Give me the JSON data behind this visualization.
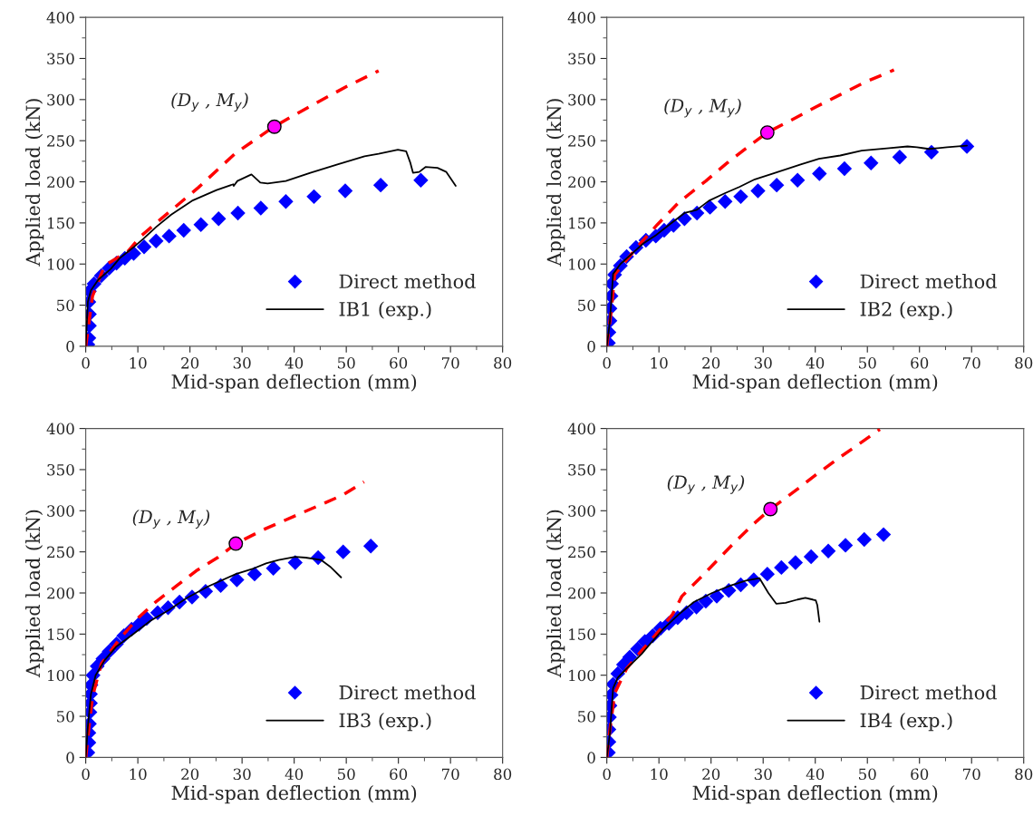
{
  "chart_data": [
    {
      "type": "line",
      "xlabel": "Mid-span deflection (mm)",
      "ylabel": "Applied load (kN)",
      "xlim": [
        0,
        80
      ],
      "ylim": [
        0,
        400
      ],
      "xticks": [
        0,
        10,
        20,
        30,
        40,
        50,
        60,
        70,
        80
      ],
      "yticks": [
        0,
        50,
        100,
        150,
        200,
        250,
        300,
        350,
        400
      ],
      "legend": "bottom right",
      "grid": false,
      "annotations": [
        {
          "text": "(D$_{y}$ , M$_{y}$)",
          "x": 36.2,
          "y": 267
        }
      ],
      "series": [
        {
          "name": "Direct method",
          "type": "scatter",
          "marker": "diamond",
          "color": "#0000ff",
          "x": [
            0.4,
            0.6,
            0.7,
            0.7,
            0.6,
            0.7,
            1.6,
            3.0,
            4.5,
            5.9,
            7.5,
            9.2,
            11.2,
            13.5,
            16.0,
            18.8,
            22.1,
            25.5,
            29.2,
            33.6,
            38.4,
            43.8,
            49.8,
            56.6,
            64.3
          ],
          "values": [
            2,
            10,
            25,
            39,
            54,
            67,
            76,
            86,
            95,
            101,
            107,
            113,
            121,
            128,
            134,
            141,
            148,
            155,
            162,
            168,
            176,
            182,
            189,
            196,
            202
          ]
        },
        {
          "line_style": "dashed",
          "color": "#ff0000",
          "x": [
            0,
            1.3,
            3.6,
            8.2,
            10.6,
            14.1,
            21.6,
            28.6,
            36.1,
            43.1,
            50.1,
            56.2
          ],
          "values": [
            0,
            61,
            98,
            116,
            134,
            153,
            193,
            234,
            267,
            292,
            316,
            335
          ]
        },
        {
          "name": "IB1 (exp.)",
          "line_style": "solid",
          "color": "#000000",
          "x": [
            0,
            0.4,
            1.0,
            2.4,
            4.8,
            6.5,
            9.1,
            11.1,
            13.5,
            16.4,
            20.4,
            25.1,
            28.3,
            28.4,
            29.1,
            31.8,
            33.5,
            34.9,
            38.4,
            43.1,
            48.3,
            53.5,
            56.2,
            59.9,
            61.5,
            62.3,
            62.8,
            64.0,
            65.2,
            67.5,
            69.2,
            71.0
          ],
          "values": [
            0,
            54,
            68,
            81,
            94,
            107,
            120,
            131,
            145,
            160,
            177,
            190,
            197,
            195,
            201,
            209,
            199,
            198,
            201,
            211,
            221,
            231,
            234,
            239,
            237,
            223,
            211,
            212,
            218,
            217,
            212,
            195
          ]
        },
        {
          "type": "scatter",
          "marker": "circle",
          "color": "#ff00ff",
          "x": [
            36.2
          ],
          "values": [
            267
          ]
        }
      ]
    },
    {
      "type": "line",
      "xlabel": "Mid-span deflection (mm)",
      "ylabel": "Applied load (kN)",
      "xlim": [
        0,
        80
      ],
      "ylim": [
        0,
        400
      ],
      "xticks": [
        0,
        10,
        20,
        30,
        40,
        50,
        60,
        70,
        80
      ],
      "yticks": [
        0,
        50,
        100,
        150,
        200,
        250,
        300,
        350,
        400
      ],
      "legend": "bottom right",
      "grid": false,
      "annotations": [
        {
          "text": "(D$_{y}$ , M$_{y}$)",
          "x": 30.8,
          "y": 260
        }
      ],
      "series": [
        {
          "name": "Direct method",
          "type": "scatter",
          "marker": "diamond",
          "color": "#0000ff",
          "x": [
            0.3,
            0.4,
            0.6,
            0.6,
            0.8,
            0.9,
            1.5,
            2.6,
            3.8,
            5.6,
            7.5,
            9.4,
            11.0,
            12.8,
            14.9,
            17.3,
            19.8,
            22.7,
            25.7,
            29.0,
            32.6,
            36.6,
            40.8,
            45.6,
            50.7,
            56.2,
            62.3,
            69.1
          ],
          "values": [
            4,
            17,
            31,
            46,
            61,
            76,
            87,
            98,
            109,
            120,
            129,
            134,
            141,
            147,
            155,
            162,
            169,
            176,
            182,
            189,
            196,
            202,
            210,
            216,
            223,
            230,
            236,
            243
          ]
        },
        {
          "line_style": "dashed",
          "color": "#ff0000",
          "x": [
            0,
            0.9,
            1.5,
            3.8,
            6.7,
            9.7,
            13.8,
            19.0,
            23.1,
            27.2,
            30.8,
            35.4,
            40.1,
            44.8,
            49.5,
            55.1
          ],
          "values": [
            0,
            46,
            87,
            105,
            127,
            148,
            175,
            201,
            223,
            243,
            260,
            275,
            291,
            306,
            321,
            336
          ]
        },
        {
          "name": "IB2 (exp.)",
          "line_style": "solid",
          "color": "#000000",
          "x": [
            0,
            0.6,
            1.2,
            2.6,
            4.7,
            7.0,
            9.4,
            12.0,
            14.9,
            17.3,
            19.6,
            22.6,
            25.5,
            28.4,
            31.9,
            37.2,
            40.7,
            44.8,
            48.9,
            54.2,
            57.7,
            59.5,
            61.8,
            63.6,
            65.3,
            69.1
          ],
          "values": [
            0,
            31,
            88,
            100,
            112,
            125,
            135,
            148,
            162,
            166,
            177,
            186,
            194,
            203,
            210,
            221,
            228,
            232,
            238,
            241,
            243,
            242,
            240,
            241,
            242,
            244
          ]
        },
        {
          "type": "scatter",
          "marker": "circle",
          "color": "#ff00ff",
          "x": [
            30.8
          ],
          "values": [
            260
          ]
        }
      ]
    },
    {
      "type": "line",
      "xlabel": "Mid-span deflection (mm)",
      "ylabel": "Applied load (kN)",
      "xlim": [
        0,
        80
      ],
      "ylim": [
        0,
        400
      ],
      "xticks": [
        0,
        10,
        20,
        30,
        40,
        50,
        60,
        70,
        80
      ],
      "yticks": [
        0,
        50,
        100,
        150,
        200,
        250,
        300,
        350,
        400
      ],
      "legend": "bottom right",
      "grid": false,
      "annotations": [
        {
          "text": "(D$_{y}$ , M$_{y}$)",
          "x": 28.8,
          "y": 260
        }
      ],
      "series": [
        {
          "name": "Direct method",
          "type": "scatter",
          "marker": "diamond",
          "color": "#0000ff",
          "x": [
            0.4,
            0.6,
            0.6,
            0.7,
            0.8,
            0.9,
            0.9,
            1.0,
            1.4,
            2.2,
            3.3,
            4.5,
            5.9,
            7.3,
            8.8,
            10.2,
            11.7,
            13.8,
            15.8,
            18.0,
            20.4,
            23.0,
            25.9,
            29.0,
            32.4,
            36.0,
            40.2,
            44.6,
            49.4,
            54.7
          ],
          "values": [
            6,
            18,
            30,
            41,
            55,
            66,
            77,
            88,
            100,
            111,
            120,
            129,
            138,
            148,
            156,
            162,
            169,
            176,
            182,
            189,
            195,
            202,
            209,
            216,
            223,
            230,
            237,
            243,
            250,
            257
          ]
        },
        {
          "line_style": "dashed",
          "color": "#ff0000",
          "x": [
            0,
            0.7,
            1.3,
            3.0,
            6.5,
            10.1,
            13.6,
            17.7,
            21.2,
            25.3,
            28.8,
            34.1,
            39.9,
            44.6,
            49.3,
            53.4
          ],
          "values": [
            0,
            41,
            74,
            114,
            144,
            170,
            190,
            210,
            227,
            243,
            260,
            277,
            293,
            306,
            319,
            335
          ]
        },
        {
          "name": "IB3 (exp.)",
          "line_style": "solid",
          "color": "#000000",
          "x": [
            0,
            0.4,
            1.0,
            1.9,
            3.6,
            5.9,
            8.9,
            12.4,
            15.9,
            19.4,
            23.5,
            28.8,
            32.3,
            34.6,
            37.0,
            40.2,
            42.2,
            45.2,
            46.9,
            49.0
          ],
          "values": [
            0,
            37,
            77,
            100,
            118,
            135,
            149,
            166,
            179,
            194,
            208,
            223,
            230,
            236,
            240,
            244,
            243,
            240,
            232,
            219
          ]
        },
        {
          "type": "scatter",
          "marker": "circle",
          "color": "#ff00ff",
          "x": [
            28.8
          ],
          "values": [
            260
          ]
        }
      ]
    },
    {
      "type": "line",
      "xlabel": "Mid-span deflection (mm)",
      "ylabel": "Applied load (kN)",
      "xlim": [
        0,
        80
      ],
      "ylim": [
        0,
        400
      ],
      "xticks": [
        0,
        10,
        20,
        30,
        40,
        50,
        60,
        70,
        80
      ],
      "yticks": [
        0,
        50,
        100,
        150,
        200,
        250,
        300,
        350,
        400
      ],
      "legend": "bottom right",
      "grid": false,
      "annotations": [
        {
          "text": "(D$_{y}$ , M$_{y}$)",
          "x": 31.4,
          "y": 302
        }
      ],
      "series": [
        {
          "name": "Direct method",
          "type": "scatter",
          "marker": "diamond",
          "color": "#0000ff",
          "x": [
            0.3,
            0.4,
            0.4,
            0.5,
            0.6,
            0.8,
            1.2,
            2.1,
            3.2,
            4.4,
            5.9,
            7.3,
            8.8,
            10.3,
            11.9,
            13.6,
            15.3,
            17.2,
            19.0,
            21.1,
            23.4,
            25.7,
            28.2,
            30.8,
            33.5,
            36.2,
            39.2,
            42.5,
            45.8,
            49.4,
            53.1
          ],
          "values": [
            6,
            19,
            34,
            49,
            63,
            76,
            89,
            102,
            113,
            122,
            132,
            141,
            148,
            157,
            163,
            170,
            176,
            183,
            190,
            196,
            203,
            210,
            216,
            223,
            231,
            237,
            244,
            251,
            258,
            265,
            271
          ]
        },
        {
          "line_style": "dashed",
          "color": "#ff0000",
          "x": [
            0,
            0.6,
            1.5,
            3.8,
            6.7,
            10.3,
            12.6,
            14.4,
            18.5,
            24.9,
            28.7,
            31.4,
            36.3,
            40.4,
            44.5,
            48.6,
            52.4
          ],
          "values": [
            0,
            34,
            78,
            108,
            130,
            156,
            174,
            196,
            222,
            264,
            287,
            302,
            325,
            345,
            364,
            382,
            399
          ]
        },
        {
          "name": "IB4 (exp.)",
          "line_style": "solid",
          "color": "#000000",
          "x": [
            0,
            0.6,
            1.2,
            2.1,
            3.8,
            6.7,
            7.9,
            10.8,
            13.8,
            16.7,
            20.2,
            23.7,
            26.7,
            29.3,
            31.0,
            32.5,
            34.3,
            36.6,
            38.1,
            39.5,
            40.1,
            40.4,
            40.8
          ],
          "values": [
            0,
            30,
            84,
            97,
            108,
            126,
            135,
            156,
            174,
            189,
            200,
            209,
            215,
            218,
            200,
            187,
            188,
            192,
            194,
            192,
            191,
            185,
            165
          ]
        },
        {
          "type": "scatter",
          "marker": "circle",
          "color": "#ff00ff",
          "x": [
            31.4
          ],
          "values": [
            302
          ]
        }
      ]
    }
  ]
}
